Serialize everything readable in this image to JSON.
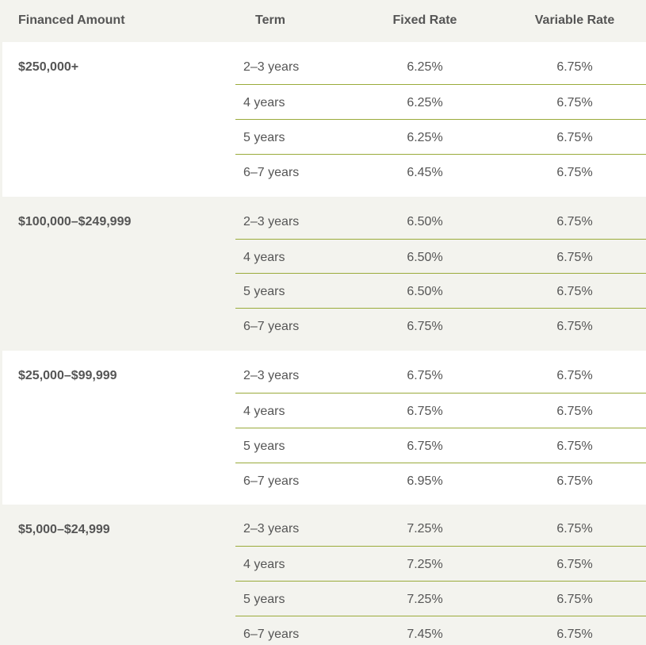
{
  "table": {
    "headers": {
      "amount": "Financed Amount",
      "term": "Term",
      "fixed": "Fixed Rate",
      "variable": "Variable Rate"
    },
    "groups": [
      {
        "amount": "$250,000+",
        "rows": [
          {
            "term": "2–3 years",
            "fixed": "6.25%",
            "variable": "6.75%"
          },
          {
            "term": "4 years",
            "fixed": "6.25%",
            "variable": "6.75%"
          },
          {
            "term": "5 years",
            "fixed": "6.25%",
            "variable": "6.75%"
          },
          {
            "term": "6–7 years",
            "fixed": "6.45%",
            "variable": "6.75%"
          }
        ]
      },
      {
        "amount": "$100,000–$249,999",
        "rows": [
          {
            "term": "2–3 years",
            "fixed": "6.50%",
            "variable": "6.75%"
          },
          {
            "term": "4 years",
            "fixed": "6.50%",
            "variable": "6.75%"
          },
          {
            "term": "5 years",
            "fixed": "6.50%",
            "variable": "6.75%"
          },
          {
            "term": "6–7 years",
            "fixed": "6.75%",
            "variable": "6.75%"
          }
        ]
      },
      {
        "amount": "$25,000–$99,999",
        "rows": [
          {
            "term": "2–3 years",
            "fixed": "6.75%",
            "variable": "6.75%"
          },
          {
            "term": "4 years",
            "fixed": "6.75%",
            "variable": "6.75%"
          },
          {
            "term": "5 years",
            "fixed": "6.75%",
            "variable": "6.75%"
          },
          {
            "term": "6–7 years",
            "fixed": "6.95%",
            "variable": "6.75%"
          }
        ]
      },
      {
        "amount": "$5,000–$24,999",
        "rows": [
          {
            "term": "2–3 years",
            "fixed": "7.25%",
            "variable": "6.75%"
          },
          {
            "term": "4 years",
            "fixed": "7.25%",
            "variable": "6.75%"
          },
          {
            "term": "5 years",
            "fixed": "7.25%",
            "variable": "6.75%"
          },
          {
            "term": "6–7 years",
            "fixed": "7.45%",
            "variable": "6.75%"
          }
        ]
      }
    ]
  },
  "colors": {
    "row_separator": "#9aab3b",
    "band_gray": "#f3f3ee",
    "band_white": "#ffffff",
    "text": "#555555"
  }
}
